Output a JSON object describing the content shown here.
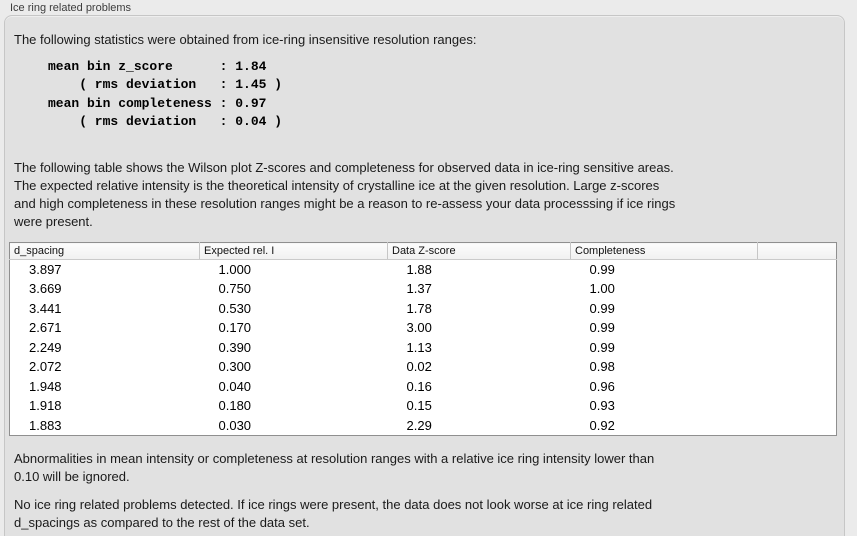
{
  "panel": {
    "title": "Ice ring related problems"
  },
  "content": {
    "intro": "The following statistics were obtained from ice-ring insensitive resolution ranges:",
    "stats_block": "mean bin z_score      : 1.84\n    ( rms deviation   : 1.45 )\nmean bin completeness : 0.97\n    ( rms deviation   : 0.04 )",
    "table_description": "The following table shows the Wilson plot Z-scores and completeness for observed data in ice-ring sensitive areas.\nThe expected relative intensity is the theoretical intensity of crystalline ice at the given resolution. Large z-scores\nand high completeness in these resolution ranges might be a reason to re-assess your data processsing if ice rings\nwere present.",
    "note_ignore": "Abnormalities in mean intensity or completeness at resolution ranges with a relative ice ring intensity lower than\n0.10 will be ignored.",
    "conclusion": "No ice ring related problems detected. If ice rings were present, the data does not look worse at ice ring related\nd_spacings as compared to the rest of the data set."
  },
  "table": {
    "columns": [
      "d_spacing",
      "Expected rel. I",
      "Data Z-score",
      "Completeness"
    ],
    "rows": [
      [
        "3.897",
        "1.000",
        "1.88",
        "0.99"
      ],
      [
        "3.669",
        "0.750",
        "1.37",
        "1.00"
      ],
      [
        "3.441",
        "0.530",
        "1.78",
        "0.99"
      ],
      [
        "2.671",
        "0.170",
        "3.00",
        "0.99"
      ],
      [
        "2.249",
        "0.390",
        "1.13",
        "0.99"
      ],
      [
        "2.072",
        "0.300",
        "0.02",
        "0.98"
      ],
      [
        "1.948",
        "0.040",
        "0.16",
        "0.96"
      ],
      [
        "1.918",
        "0.180",
        "0.15",
        "0.93"
      ],
      [
        "1.883",
        "0.030",
        "2.29",
        "0.92"
      ]
    ]
  },
  "colors": {
    "page_background": "#ebebeb",
    "box_background": "#e1e1e1",
    "box_border": "#c6c6c6",
    "table_background": "#ffffff",
    "table_border": "#8f8f8f",
    "header_separator": "#c6c6c6",
    "text": "#1a1a1a",
    "panel_title_text": "#3c3c3c"
  }
}
